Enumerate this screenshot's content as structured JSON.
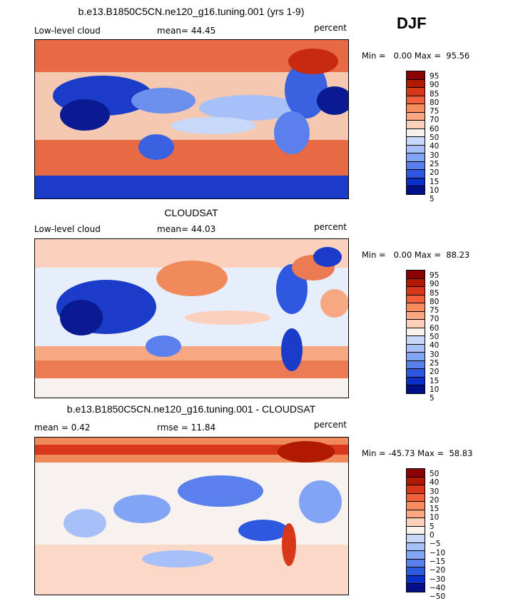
{
  "season": "DJF",
  "panels": [
    {
      "title": "b.e13.B1850C5CN.ne120_g16.tuning.001 (yrs 1-9)",
      "left": "Low-level cloud",
      "mid": "mean=  44.45",
      "right": "percent",
      "minmax": "Min =   0.00 Max =  95.56",
      "levels": [
        "95",
        "90",
        "85",
        "80",
        "75",
        "70",
        "60",
        "50",
        "40",
        "30",
        "25",
        "20",
        "15",
        "10",
        "5"
      ]
    },
    {
      "title": "CLOUDSAT",
      "left": "Low-level cloud",
      "mid": "mean=  44.03",
      "right": "percent",
      "minmax": "Min =   0.00 Max =  88.23",
      "levels": [
        "95",
        "90",
        "85",
        "80",
        "75",
        "70",
        "60",
        "50",
        "40",
        "30",
        "25",
        "20",
        "15",
        "10",
        "5"
      ]
    },
    {
      "title": "b.e13.B1850C5CN.ne120_g16.tuning.001 - CLOUDSAT",
      "left": "mean =   0.42",
      "mid": "rmse =  11.84",
      "right": "percent",
      "minmax": "Min = -45.73 Max =  58.83",
      "levels": [
        "50",
        "40",
        "30",
        "20",
        "15",
        "10",
        "5",
        "0",
        "−5",
        "−10",
        "−15",
        "−20",
        "−30",
        "−40",
        "−50"
      ]
    }
  ],
  "colors": {
    "bar_abs": [
      "#8b0000",
      "#b01a00",
      "#d8381a",
      "#f0603a",
      "#f88c5c",
      "#fba882",
      "#fdd0bc",
      "#f8f2ee",
      "#c8d8f8",
      "#a8c0f8",
      "#82a4f4",
      "#5a80ee",
      "#2e58e0",
      "#0a30c8",
      "#000e88"
    ],
    "bar_diff": [
      "#8b0000",
      "#b01a00",
      "#d8381a",
      "#f0603a",
      "#f88c5c",
      "#fba882",
      "#fdd0bc",
      "#f8f2ee",
      "#c8d8f8",
      "#a8c0f8",
      "#82a4f4",
      "#5a80ee",
      "#2e58e0",
      "#0a30c8",
      "#000e88"
    ]
  }
}
